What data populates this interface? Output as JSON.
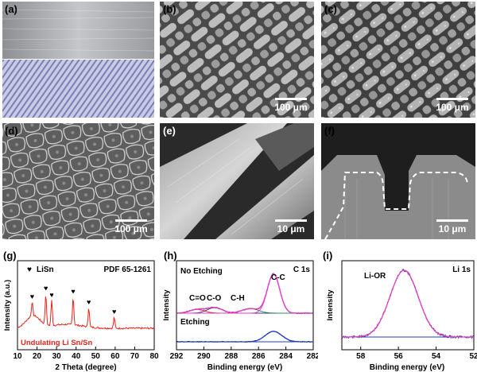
{
  "panels": {
    "a": {
      "label": "(a)"
    },
    "b": {
      "label": "(b)",
      "scale": "100 μm"
    },
    "c": {
      "label": "(c)",
      "scale": "100 μm"
    },
    "d": {
      "label": "(d)",
      "scale": "100 μm"
    },
    "e": {
      "label": "(e)",
      "scale": "10 μm"
    },
    "f": {
      "label": "(f)",
      "scale": "10 μm"
    }
  },
  "chart_data": [
    {
      "id": "g",
      "type": "line",
      "panel_label": "(g)",
      "legend": "LiSn",
      "reference": "PDF 65-1261",
      "annotation": "Undulating Li Sn/Sn",
      "xlabel": "2 Theta (degree)",
      "ylabel": "Intensity (a.u.)",
      "xlim": [
        10,
        80
      ],
      "xticks": [
        10,
        20,
        30,
        40,
        50,
        60,
        70,
        80
      ],
      "peaks": [
        17.5,
        24.5,
        27.5,
        38.5,
        46.5,
        59.5
      ],
      "series": [
        {
          "color": "#e8231a"
        }
      ]
    },
    {
      "id": "h",
      "type": "line",
      "panel_label": "(h)",
      "title": "C 1s",
      "xlabel": "Binding energy (eV)",
      "ylabel": "Intensity",
      "xlim": [
        292,
        282
      ],
      "xticks": [
        292,
        290,
        288,
        286,
        284,
        282
      ],
      "labels": {
        "top": "No Etching",
        "bottom": "Etching"
      },
      "peaks": [
        {
          "name": "C=O",
          "center": 290.5
        },
        {
          "name": "C-O",
          "center": 289.2
        },
        {
          "name": "C-H",
          "center": 286.6
        },
        {
          "name": "C-C",
          "center": 284.9
        }
      ],
      "etching_peak_center": 284.9
    },
    {
      "id": "i",
      "type": "line",
      "panel_label": "(i)",
      "title": "Li 1s",
      "xlabel": "Binding energy (eV)",
      "ylabel": "Intensity",
      "xlim": [
        59,
        52
      ],
      "xticks": [
        58,
        56,
        54,
        52
      ],
      "peaks": [
        {
          "name": "Li-OR",
          "center": 55.7
        }
      ]
    }
  ]
}
